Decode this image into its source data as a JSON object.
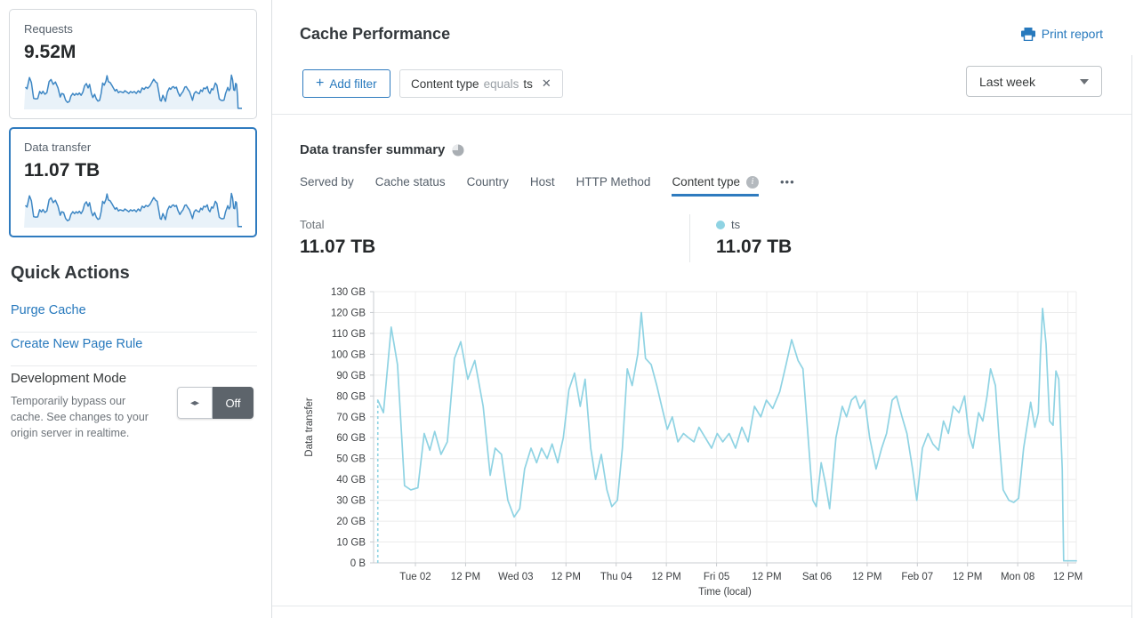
{
  "sidebar": {
    "cards": [
      {
        "label": "Requests",
        "value": "9.52M"
      },
      {
        "label": "Data transfer",
        "value": "11.07 TB"
      }
    ],
    "quick_actions": {
      "title": "Quick Actions",
      "purge_cache": "Purge Cache",
      "create_page_rule": "Create New Page Rule",
      "dev_mode": {
        "title": "Development Mode",
        "description": "Temporarily bypass our cache. See changes to your origin server in realtime.",
        "state": "Off"
      }
    }
  },
  "header": {
    "title": "Cache Performance",
    "print_report": "Print report"
  },
  "filters": {
    "add_filter": "Add filter",
    "plus": "+",
    "close": "✕",
    "chip": {
      "field": "Content type",
      "operator": "equals",
      "value": "ts"
    },
    "range_selected": "Last week"
  },
  "summary": {
    "title": "Data transfer summary",
    "tabs": [
      {
        "label": "Served by"
      },
      {
        "label": "Cache status"
      },
      {
        "label": "Country"
      },
      {
        "label": "Host"
      },
      {
        "label": "HTTP Method"
      },
      {
        "label": "Content type"
      }
    ],
    "info_glyph": "i",
    "more_icon": "•••",
    "total": {
      "label": "Total",
      "value": "11.07 TB"
    },
    "legend": {
      "name": "ts",
      "value": "11.07 TB",
      "color": "#8fd3e3"
    }
  },
  "colors": {
    "accent": "#2779bd",
    "tab_underline": "#2f7bbf",
    "chart_line": "#8fd3e3",
    "spark_line": "#3e87c4",
    "spark_fill": "#e9f2f9",
    "grid": "#ececec",
    "axis": "#c9ccd0",
    "tick_text": "#3d4043"
  },
  "chart_data": {
    "type": "line",
    "title": "Data transfer summary",
    "xlabel": "Time (local)",
    "ylabel": "Data transfer",
    "unit": "GB",
    "ylim": [
      0,
      130
    ],
    "y_tick_step": 10,
    "y_tick_labels": [
      "0 B",
      "10 GB",
      "20 GB",
      "30 GB",
      "40 GB",
      "50 GB",
      "60 GB",
      "70 GB",
      "80 GB",
      "90 GB",
      "100 GB",
      "110 GB",
      "120 GB",
      "130 GB"
    ],
    "x_tick_labels": [
      "Tue 02",
      "12 PM",
      "Wed 03",
      "12 PM",
      "Thu 04",
      "12 PM",
      "Fri 05",
      "12 PM",
      "Sat 06",
      "12 PM",
      "Feb 07",
      "12 PM",
      "Mon 08",
      "12 PM"
    ],
    "grid": true,
    "legend_position": "top-right",
    "leading_dashed_drop": true,
    "series": [
      {
        "name": "ts",
        "total": "11.07 TB",
        "color": "#8fd3e3",
        "points": [
          [
            0.006,
            78
          ],
          [
            0.014,
            72
          ],
          [
            0.025,
            113
          ],
          [
            0.034,
            95
          ],
          [
            0.044,
            37
          ],
          [
            0.053,
            35
          ],
          [
            0.063,
            36
          ],
          [
            0.072,
            62
          ],
          [
            0.08,
            54
          ],
          [
            0.087,
            63
          ],
          [
            0.096,
            52
          ],
          [
            0.105,
            58
          ],
          [
            0.115,
            98
          ],
          [
            0.124,
            106
          ],
          [
            0.134,
            88
          ],
          [
            0.144,
            97
          ],
          [
            0.156,
            75
          ],
          [
            0.166,
            42
          ],
          [
            0.173,
            55
          ],
          [
            0.182,
            52
          ],
          [
            0.191,
            30
          ],
          [
            0.2,
            22
          ],
          [
            0.208,
            26
          ],
          [
            0.215,
            45
          ],
          [
            0.224,
            55
          ],
          [
            0.232,
            48
          ],
          [
            0.239,
            55
          ],
          [
            0.247,
            50
          ],
          [
            0.254,
            57
          ],
          [
            0.262,
            48
          ],
          [
            0.27,
            60
          ],
          [
            0.278,
            83
          ],
          [
            0.286,
            91
          ],
          [
            0.294,
            75
          ],
          [
            0.301,
            88
          ],
          [
            0.309,
            55
          ],
          [
            0.316,
            40
          ],
          [
            0.324,
            52
          ],
          [
            0.332,
            35
          ],
          [
            0.339,
            27
          ],
          [
            0.347,
            30
          ],
          [
            0.354,
            55
          ],
          [
            0.361,
            93
          ],
          [
            0.368,
            85
          ],
          [
            0.376,
            100
          ],
          [
            0.381,
            120
          ],
          [
            0.387,
            98
          ],
          [
            0.395,
            95
          ],
          [
            0.403,
            85
          ],
          [
            0.41,
            75
          ],
          [
            0.418,
            64
          ],
          [
            0.425,
            70
          ],
          [
            0.433,
            58
          ],
          [
            0.441,
            62
          ],
          [
            0.448,
            60
          ],
          [
            0.456,
            58
          ],
          [
            0.463,
            65
          ],
          [
            0.472,
            60
          ],
          [
            0.481,
            55
          ],
          [
            0.489,
            62
          ],
          [
            0.497,
            58
          ],
          [
            0.506,
            62
          ],
          [
            0.515,
            55
          ],
          [
            0.524,
            65
          ],
          [
            0.533,
            58
          ],
          [
            0.542,
            75
          ],
          [
            0.551,
            70
          ],
          [
            0.559,
            78
          ],
          [
            0.568,
            74
          ],
          [
            0.578,
            82
          ],
          [
            0.587,
            95
          ],
          [
            0.595,
            107
          ],
          [
            0.604,
            97
          ],
          [
            0.611,
            93
          ],
          [
            0.618,
            62
          ],
          [
            0.625,
            30
          ],
          [
            0.63,
            27
          ],
          [
            0.637,
            48
          ],
          [
            0.643,
            38
          ],
          [
            0.649,
            26
          ],
          [
            0.658,
            60
          ],
          [
            0.667,
            75
          ],
          [
            0.673,
            70
          ],
          [
            0.68,
            78
          ],
          [
            0.686,
            80
          ],
          [
            0.692,
            74
          ],
          [
            0.699,
            78
          ],
          [
            0.706,
            60
          ],
          [
            0.715,
            45
          ],
          [
            0.723,
            55
          ],
          [
            0.73,
            62
          ],
          [
            0.738,
            78
          ],
          [
            0.744,
            80
          ],
          [
            0.752,
            70
          ],
          [
            0.759,
            62
          ],
          [
            0.767,
            45
          ],
          [
            0.773,
            30
          ],
          [
            0.781,
            55
          ],
          [
            0.789,
            62
          ],
          [
            0.796,
            57
          ],
          [
            0.804,
            54
          ],
          [
            0.811,
            68
          ],
          [
            0.818,
            62
          ],
          [
            0.825,
            75
          ],
          [
            0.833,
            72
          ],
          [
            0.841,
            80
          ],
          [
            0.847,
            62
          ],
          [
            0.853,
            55
          ],
          [
            0.861,
            72
          ],
          [
            0.867,
            68
          ],
          [
            0.873,
            80
          ],
          [
            0.878,
            93
          ],
          [
            0.885,
            85
          ],
          [
            0.89,
            60
          ],
          [
            0.896,
            35
          ],
          [
            0.904,
            30
          ],
          [
            0.911,
            29
          ],
          [
            0.918,
            31
          ],
          [
            0.925,
            55
          ],
          [
            0.932,
            70
          ],
          [
            0.935,
            77
          ],
          [
            0.941,
            65
          ],
          [
            0.946,
            72
          ],
          [
            0.949,
            100
          ],
          [
            0.952,
            122
          ],
          [
            0.957,
            105
          ],
          [
            0.962,
            68
          ],
          [
            0.967,
            66
          ],
          [
            0.971,
            92
          ],
          [
            0.975,
            88
          ],
          [
            0.98,
            45
          ],
          [
            0.982,
            1
          ],
          [
            0.994,
            1
          ],
          [
            1.0,
            1
          ]
        ]
      }
    ]
  }
}
